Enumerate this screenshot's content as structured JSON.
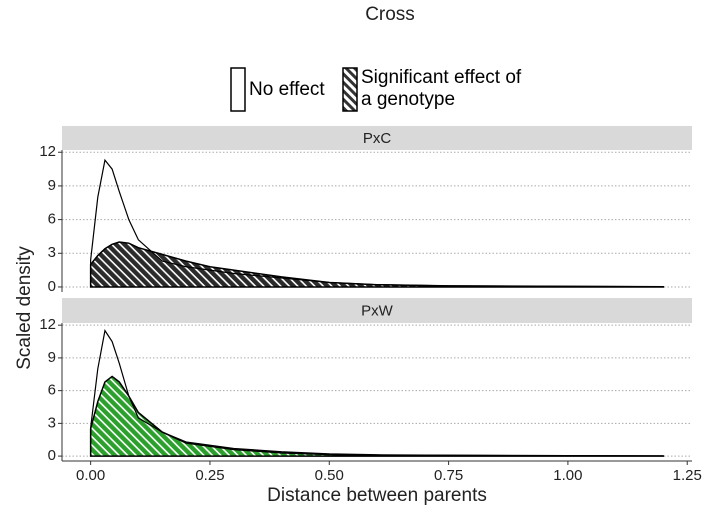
{
  "legend_title": "Cross",
  "y_label": "Scaled density",
  "chart_data": [
    {
      "type": "area",
      "title": "PxC",
      "x": [
        0,
        0.015,
        0.03,
        0.045,
        0.06,
        0.08,
        0.1,
        0.15,
        0.2,
        0.25,
        0.3,
        0.4,
        0.5,
        0.6,
        0.75,
        1.0,
        1.2
      ],
      "series": [
        {
          "name": "No effect",
          "color": "#000000",
          "values": [
            2.4,
            8,
            11.3,
            10.5,
            8.5,
            6,
            4.2,
            2.3,
            1.8,
            1.5,
            1.2,
            0.8,
            0.4,
            0.2,
            0.1,
            0.05,
            0.02
          ]
        },
        {
          "name": "Significant effect of a genotype",
          "color": "#2b2b2b",
          "values": [
            2,
            2.8,
            3.4,
            3.8,
            4,
            3.9,
            3.5,
            2.9,
            2.3,
            1.8,
            1.5,
            0.9,
            0.4,
            0.2,
            0.1,
            0.05,
            0.02
          ]
        }
      ],
      "xlim": [
        -0.06,
        1.26
      ],
      "ylim": [
        -0.45,
        12.2
      ],
      "yticks": [
        0,
        3,
        6,
        9,
        12
      ],
      "grid": true
    },
    {
      "type": "area",
      "title": "PxW",
      "x": [
        0,
        0.015,
        0.03,
        0.045,
        0.06,
        0.08,
        0.1,
        0.15,
        0.2,
        0.25,
        0.3,
        0.4,
        0.5,
        0.6,
        0.75,
        1.0,
        1.2
      ],
      "series": [
        {
          "name": "No effect",
          "color": "#000000",
          "values": [
            2.6,
            8,
            11.5,
            10.5,
            8.5,
            5.5,
            3.5,
            2.2,
            1.3,
            1.0,
            0.7,
            0.4,
            0.2,
            0.12,
            0.08,
            0.04,
            0.02
          ]
        },
        {
          "name": "Significant effect of a genotype",
          "color": "#2ca02c",
          "values": [
            2.5,
            5,
            6.8,
            7.3,
            6.8,
            5.5,
            4,
            2.2,
            1.2,
            0.9,
            0.6,
            0.3,
            0.15,
            0.08,
            0.06,
            0.03,
            0.01
          ]
        }
      ],
      "xlim": [
        -0.06,
        1.26
      ],
      "ylim": [
        -0.45,
        12.2
      ],
      "yticks": [
        0,
        3,
        6,
        9,
        12
      ],
      "grid": true,
      "x_label": "Distance between parents",
      "xticks": [
        {
          "value": 0,
          "label": "0.00"
        },
        {
          "value": 0.25,
          "label": "0.25"
        },
        {
          "value": 0.5,
          "label": "0.50"
        },
        {
          "value": 0.75,
          "label": "0.75"
        },
        {
          "value": 1,
          "label": "1.00"
        },
        {
          "value": 1.25,
          "label": "1.25"
        }
      ]
    }
  ]
}
